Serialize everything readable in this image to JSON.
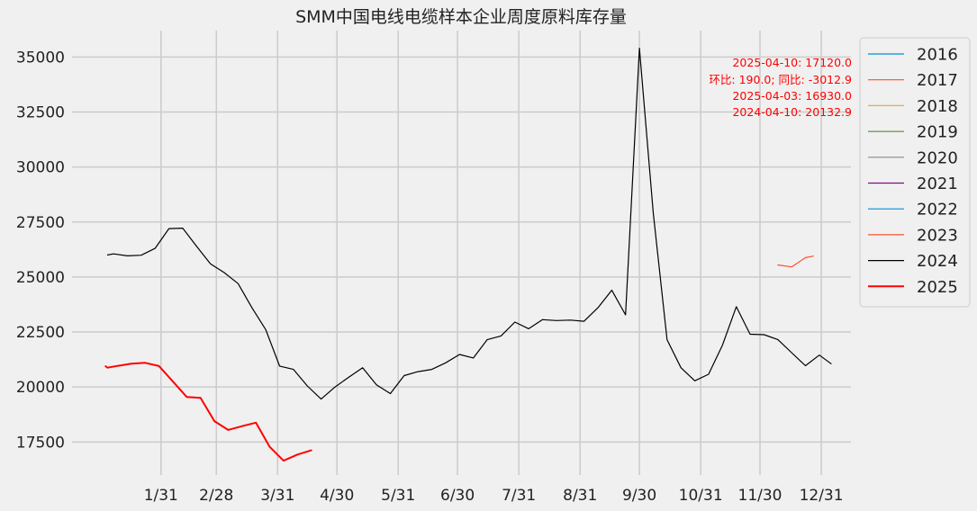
{
  "chart_data": {
    "type": "line",
    "title": "SMM中国电线电缆样本企业周度原料库存量",
    "xlabel": "",
    "ylabel": "",
    "x_ticks": [
      "1/31",
      "2/28",
      "3/31",
      "4/30",
      "5/31",
      "6/30",
      "7/31",
      "8/31",
      "9/30",
      "10/31",
      "11/30",
      "12/31"
    ],
    "y_ticks": [
      "17500",
      "20000",
      "22500",
      "25000",
      "27500",
      "30000",
      "32500",
      "35000"
    ],
    "ylim": [
      16000,
      36200
    ],
    "x_unit": "day_of_year",
    "xlim": [
      -14,
      380
    ],
    "grid": true,
    "legend_position": "outside-top-right",
    "annotation_lines": [
      "2025-04-10: 17120.0",
      "环比: 190.0; 同比: -3012.9",
      "2025-04-03: 16930.0",
      "2024-04-10: 20132.9"
    ],
    "series": [
      {
        "name": "2016",
        "color": "#008fd5",
        "width": 1.2,
        "points": []
      },
      {
        "name": "2017",
        "color": "#fc4f30",
        "width": 1.2,
        "points": []
      },
      {
        "name": "2018",
        "color": "#e5ae38",
        "width": 1.2,
        "points": []
      },
      {
        "name": "2019",
        "color": "#6d904f",
        "width": 1.2,
        "points": []
      },
      {
        "name": "2020",
        "color": "#8b8b8b",
        "width": 1.2,
        "points": []
      },
      {
        "name": "2021",
        "color": "#810f7c",
        "width": 1.2,
        "points": []
      },
      {
        "name": "2022",
        "color": "#008fd5",
        "width": 1.2,
        "points": []
      },
      {
        "name": "2023",
        "color": "#fc4f30",
        "width": 1.2,
        "points": [
          [
            343,
            25550
          ],
          [
            350,
            25460
          ],
          [
            357,
            25880
          ],
          [
            361,
            25950
          ]
        ]
      },
      {
        "name": "2024",
        "color": "#000000",
        "width": 1.2,
        "points": [
          [
            4,
            26000
          ],
          [
            7,
            26050
          ],
          [
            14,
            25960
          ],
          [
            21,
            25990
          ],
          [
            28,
            26300
          ],
          [
            35,
            27200
          ],
          [
            42,
            27220
          ],
          [
            49,
            26400
          ],
          [
            56,
            25600
          ],
          [
            63,
            25200
          ],
          [
            70,
            24700
          ],
          [
            77,
            23600
          ],
          [
            84,
            22600
          ],
          [
            91,
            20950
          ],
          [
            98,
            20800
          ],
          [
            105,
            20050
          ],
          [
            112,
            19450
          ],
          [
            119,
            20000
          ],
          [
            126,
            20450
          ],
          [
            133,
            20880
          ],
          [
            140,
            20100
          ],
          [
            147,
            19700
          ],
          [
            154,
            20520
          ],
          [
            161,
            20700
          ],
          [
            168,
            20800
          ],
          [
            175,
            21100
          ],
          [
            182,
            21480
          ],
          [
            189,
            21320
          ],
          [
            196,
            22150
          ],
          [
            203,
            22320
          ],
          [
            210,
            22950
          ],
          [
            217,
            22650
          ],
          [
            224,
            23060
          ],
          [
            231,
            23020
          ],
          [
            238,
            23040
          ],
          [
            245,
            22990
          ],
          [
            252,
            23600
          ],
          [
            259,
            24400
          ],
          [
            266,
            23280
          ],
          [
            273,
            35400
          ],
          [
            280,
            27900
          ],
          [
            287,
            22150
          ],
          [
            294,
            20880
          ],
          [
            301,
            20280
          ],
          [
            308,
            20580
          ],
          [
            315,
            21900
          ],
          [
            322,
            23650
          ],
          [
            329,
            22400
          ],
          [
            336,
            22380
          ],
          [
            343,
            22160
          ],
          [
            350,
            21560
          ],
          [
            357,
            20970
          ],
          [
            364,
            21450
          ],
          [
            370,
            21060
          ]
        ]
      },
      {
        "name": "2025",
        "color": "#ff0000",
        "width": 2.0,
        "points": [
          [
            3,
            20940
          ],
          [
            4,
            20880
          ],
          [
            9,
            20960
          ],
          [
            16,
            21060
          ],
          [
            23,
            21100
          ],
          [
            30,
            20950
          ],
          [
            37,
            20250
          ],
          [
            44,
            19550
          ],
          [
            51,
            19510
          ],
          [
            58,
            18450
          ],
          [
            65,
            18050
          ],
          [
            72,
            18220
          ],
          [
            79,
            18380
          ],
          [
            86,
            17280
          ],
          [
            93,
            16650
          ],
          [
            100,
            16930
          ],
          [
            107,
            17120
          ]
        ]
      }
    ]
  }
}
